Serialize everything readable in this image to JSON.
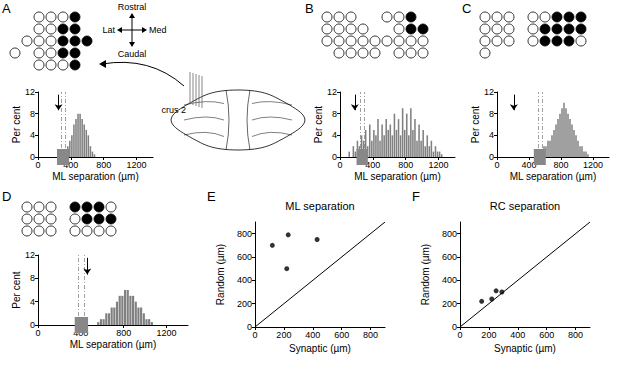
{
  "chart_data": [
    {
      "type": "histogram",
      "title": "A",
      "electrodes": [
        [
          null,
          null,
          0,
          0,
          0,
          1,
          null
        ],
        [
          null,
          null,
          0,
          0,
          1,
          1,
          null
        ],
        [
          null,
          0,
          0,
          0,
          1,
          1,
          1
        ],
        [
          0,
          null,
          0,
          0,
          1,
          1,
          null
        ],
        [
          null,
          null,
          0,
          0,
          0,
          1,
          null
        ]
      ],
      "bins": [
        0,
        25,
        50,
        75,
        100,
        125,
        150,
        175,
        200,
        225,
        250,
        275,
        300,
        325,
        350,
        375,
        400,
        425,
        450,
        475,
        500,
        525,
        550,
        575,
        600,
        625,
        650,
        675,
        700,
        725,
        750,
        775,
        800,
        825,
        850,
        875,
        900,
        925,
        950,
        975,
        1000,
        1025,
        1050,
        1075,
        1100,
        1125,
        1150,
        1175,
        1200,
        1225,
        1250,
        1275,
        1300,
        1325,
        1350,
        1375,
        1400
      ],
      "values": [
        0,
        0,
        0,
        0,
        0,
        0,
        0,
        0,
        0,
        0,
        0,
        0,
        0.5,
        1,
        2,
        3,
        4,
        6,
        7,
        8,
        8,
        7,
        6,
        5,
        4,
        2,
        1,
        0.5,
        0,
        0,
        0,
        0,
        0,
        0,
        0,
        0,
        0,
        0,
        0,
        0,
        0,
        0,
        0,
        0,
        0,
        0,
        0,
        0,
        0,
        0,
        0,
        0,
        0,
        0,
        0,
        0
      ],
      "color": "#808080",
      "synaptic": 250,
      "dashed_lines": [
        280,
        330
      ],
      "x_label": "ML separation (µm)",
      "y_label": "Per cent",
      "xlim": [
        0,
        1400
      ],
      "ylim": [
        0,
        12
      ],
      "xticks": [
        0,
        400,
        800,
        1200
      ],
      "yticks": [
        0,
        4,
        8,
        12
      ]
    },
    {
      "type": "histogram",
      "title": "B",
      "electrodes": [
        [
          0,
          0,
          0,
          null,
          null,
          0,
          0,
          1,
          null
        ],
        [
          0,
          0,
          0,
          0,
          null,
          null,
          0,
          1,
          1
        ],
        [
          0,
          0,
          0,
          0,
          0,
          0,
          0,
          0,
          0
        ],
        [
          null,
          0,
          0,
          0,
          0,
          null,
          0,
          0,
          0
        ]
      ],
      "bins": [
        0,
        25,
        50,
        75,
        100,
        125,
        150,
        175,
        200,
        225,
        250,
        275,
        300,
        325,
        350,
        375,
        400,
        425,
        450,
        475,
        500,
        525,
        550,
        575,
        600,
        625,
        650,
        675,
        700,
        725,
        750,
        775,
        800,
        825,
        850,
        875,
        900,
        925,
        950,
        975,
        1000,
        1025,
        1050,
        1075,
        1100,
        1125,
        1150,
        1175,
        1200,
        1225,
        1250,
        1275,
        1300,
        1325,
        1350,
        1375,
        1400
      ],
      "values": [
        0,
        0,
        0,
        0,
        1,
        0,
        2,
        1,
        3,
        2,
        4,
        3,
        5,
        2,
        6,
        3,
        5,
        4,
        7,
        3,
        6,
        4,
        7,
        5,
        6,
        4,
        8,
        5,
        7,
        4,
        9,
        5,
        8,
        4,
        9,
        5,
        7,
        3,
        6,
        3,
        5,
        2,
        4,
        2,
        3,
        1,
        2,
        1,
        1,
        0.5,
        0,
        0,
        0,
        0,
        0,
        0
      ],
      "color": "#808080",
      "synaptic": 180,
      "dashed_lines": [
        250,
        290
      ],
      "x_label": "ML separation (µm)",
      "y_label": "Per cent",
      "xlim": [
        0,
        1400
      ],
      "ylim": [
        0,
        12
      ],
      "xticks": [
        0,
        400,
        800,
        1200
      ],
      "yticks": [
        0,
        4,
        8,
        12
      ]
    },
    {
      "type": "histogram",
      "title": "C",
      "electrodes": [
        [
          0,
          0,
          0,
          null,
          0,
          0,
          1,
          1,
          1
        ],
        [
          0,
          0,
          0,
          null,
          0,
          1,
          1,
          1,
          1
        ],
        [
          0,
          0,
          0,
          null,
          0,
          1,
          1,
          1,
          0
        ],
        [
          0,
          null,
          null,
          null,
          null,
          null,
          null,
          null,
          null
        ]
      ],
      "bins": [
        0,
        25,
        50,
        75,
        100,
        125,
        150,
        175,
        200,
        225,
        250,
        275,
        300,
        325,
        350,
        375,
        400,
        425,
        450,
        475,
        500,
        525,
        550,
        575,
        600,
        625,
        650,
        675,
        700,
        725,
        750,
        775,
        800,
        825,
        850,
        875,
        900,
        925,
        950,
        975,
        1000,
        1025,
        1050,
        1075,
        1100,
        1125,
        1150,
        1175,
        1200,
        1225,
        1250,
        1275,
        1300,
        1325,
        1350,
        1375,
        1400
      ],
      "values": [
        0,
        0,
        0,
        0,
        0,
        0,
        0,
        0,
        0,
        0,
        0,
        0,
        0,
        0,
        0,
        0,
        0,
        0,
        0,
        0,
        0.5,
        1,
        1,
        2,
        2,
        3,
        3,
        4,
        5,
        6,
        7,
        8,
        9,
        10,
        9,
        8,
        7,
        6,
        5,
        4,
        3,
        2,
        2,
        1,
        1,
        0.5,
        0,
        0,
        0,
        0,
        0,
        0,
        0,
        0,
        0,
        0
      ],
      "color": "#808080",
      "synaptic": 210,
      "dashed_lines": [
        510,
        560
      ],
      "x_label": "ML separation (µm)",
      "y_label": "Per cent",
      "xlim": [
        0,
        1400
      ],
      "ylim": [
        0,
        12
      ],
      "xticks": [
        0,
        400,
        800,
        1200
      ],
      "yticks": [
        0,
        4,
        8,
        12
      ]
    },
    {
      "type": "histogram",
      "title": "D",
      "electrodes": [
        [
          0,
          0,
          0,
          null,
          1,
          1,
          1,
          0
        ],
        [
          0,
          0,
          0,
          null,
          0,
          1,
          1,
          1
        ],
        [
          0,
          0,
          0,
          null,
          0,
          0,
          0,
          0
        ]
      ],
      "bins": [
        0,
        25,
        50,
        75,
        100,
        125,
        150,
        175,
        200,
        225,
        250,
        275,
        300,
        325,
        350,
        375,
        400,
        425,
        450,
        475,
        500,
        525,
        550,
        575,
        600,
        625,
        650,
        675,
        700,
        725,
        750,
        775,
        800,
        825,
        850,
        875,
        900,
        925,
        950,
        975,
        1000,
        1025,
        1050,
        1075,
        1100,
        1125,
        1150,
        1175,
        1200,
        1225,
        1250,
        1275,
        1300,
        1325,
        1350,
        1375,
        1400
      ],
      "values": [
        0,
        0,
        0,
        0,
        0,
        0,
        0,
        0,
        0,
        0,
        0,
        0,
        0,
        0,
        0,
        0,
        0,
        0,
        0,
        0,
        0,
        0,
        0.5,
        1,
        1,
        2,
        2,
        3,
        3,
        4,
        5,
        5,
        6,
        6,
        5,
        5,
        4,
        3,
        3,
        2,
        1,
        1,
        0.5,
        0,
        0,
        0,
        0,
        0,
        0,
        0,
        0,
        0,
        0,
        0,
        0,
        0
      ],
      "color": "#808080",
      "synaptic": 460,
      "dashed_lines": [
        380,
        430
      ],
      "x_label": "ML separation (µm)",
      "y_label": "Per cent",
      "xlim": [
        0,
        1400
      ],
      "ylim": [
        0,
        12
      ],
      "xticks": [
        0,
        400,
        800,
        1200
      ],
      "yticks": [
        0,
        4,
        8,
        12
      ]
    },
    {
      "type": "scatter",
      "title": "E",
      "subtitle": "ML separation",
      "x": [
        120,
        220,
        230,
        430
      ],
      "values": [
        700,
        500,
        790,
        750
      ],
      "color": "#000000",
      "x_label": "Synaptic (µm)",
      "y_label": "Random (µm)",
      "xlim": [
        0,
        900
      ],
      "ylim": [
        0,
        900
      ],
      "xticks": [
        0,
        200,
        400,
        600,
        800
      ],
      "yticks": [
        0,
        200,
        400,
        600,
        800
      ],
      "reference_line": {
        "x": [
          0,
          900
        ],
        "values": [
          0,
          900
        ]
      }
    },
    {
      "type": "scatter",
      "title": "F",
      "subtitle": "RC separation",
      "x": [
        150,
        220,
        250,
        290
      ],
      "values": [
        220,
        240,
        310,
        300
      ],
      "color": "#000000",
      "x_label": "Synaptic (µm)",
      "y_label": "Random (µm)",
      "xlim": [
        0,
        900
      ],
      "ylim": [
        0,
        900
      ],
      "xticks": [
        0,
        200,
        400,
        600,
        800
      ],
      "yticks": [
        0,
        200,
        400,
        600,
        800
      ],
      "reference_line": {
        "x": [
          0,
          900
        ],
        "values": [
          0,
          900
        ]
      }
    }
  ],
  "diagram": {
    "rostral": "Rostral",
    "caudal": "Caudal",
    "lateral": "Lat",
    "medial": "Med",
    "region": "crus 2"
  }
}
